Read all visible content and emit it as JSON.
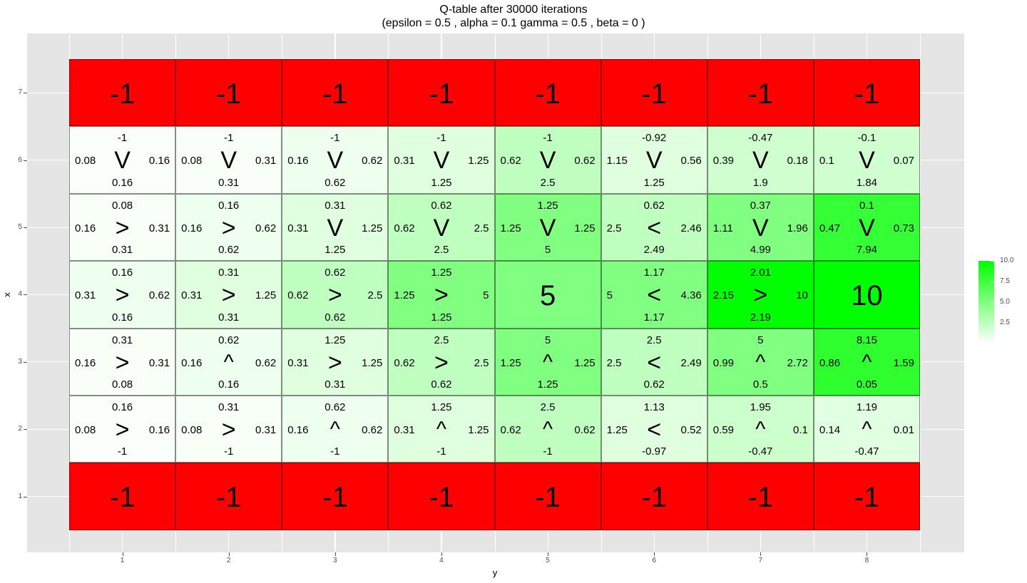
{
  "chart_data": {
    "type": "heatmap",
    "title": "Q-table after  30000  iterations",
    "subtitle": "(epsilon =  0.5 , alpha =  0.1 gamma =  0.5 , beta =  0 )",
    "xlabel": "y",
    "ylabel": "x",
    "x_ticks": [
      "1",
      "2",
      "3",
      "4",
      "5",
      "6",
      "7",
      "8"
    ],
    "y_ticks": [
      "1",
      "2",
      "3",
      "4",
      "5",
      "6",
      "7"
    ],
    "legend": {
      "position": "right",
      "range": [
        0,
        10
      ],
      "ticks": [
        "2.5",
        "5.0",
        "7.5",
        "10.0"
      ],
      "low_color": "#ffffff",
      "high_color": "#00ff00"
    },
    "terminal_color": "#ff0000",
    "cells": [
      {
        "x": 7,
        "y": 1,
        "type": "terminal",
        "value": "-1",
        "color_value": -1
      },
      {
        "x": 7,
        "y": 2,
        "type": "terminal",
        "value": "-1",
        "color_value": -1
      },
      {
        "x": 7,
        "y": 3,
        "type": "terminal",
        "value": "-1",
        "color_value": -1
      },
      {
        "x": 7,
        "y": 4,
        "type": "terminal",
        "value": "-1",
        "color_value": -1
      },
      {
        "x": 7,
        "y": 5,
        "type": "terminal",
        "value": "-1",
        "color_value": -1
      },
      {
        "x": 7,
        "y": 6,
        "type": "terminal",
        "value": "-1",
        "color_value": -1
      },
      {
        "x": 7,
        "y": 7,
        "type": "terminal",
        "value": "-1",
        "color_value": -1
      },
      {
        "x": 7,
        "y": 8,
        "type": "terminal",
        "value": "-1",
        "color_value": -1
      },
      {
        "x": 6,
        "y": 1,
        "type": "state",
        "top": "-1",
        "left": "0.08",
        "right": "0.16",
        "bottom": "0.16",
        "arrow": "V",
        "color_value": 0.16
      },
      {
        "x": 6,
        "y": 2,
        "type": "state",
        "top": "-1",
        "left": "0.08",
        "right": "0.31",
        "bottom": "0.31",
        "arrow": "V",
        "color_value": 0.31
      },
      {
        "x": 6,
        "y": 3,
        "type": "state",
        "top": "-1",
        "left": "0.16",
        "right": "0.62",
        "bottom": "0.62",
        "arrow": "V",
        "color_value": 0.62
      },
      {
        "x": 6,
        "y": 4,
        "type": "state",
        "top": "-1",
        "left": "0.31",
        "right": "1.25",
        "bottom": "1.25",
        "arrow": "V",
        "color_value": 1.25
      },
      {
        "x": 6,
        "y": 5,
        "type": "state",
        "top": "-1",
        "left": "0.62",
        "right": "0.62",
        "bottom": "2.5",
        "arrow": "V",
        "color_value": 2.5
      },
      {
        "x": 6,
        "y": 6,
        "type": "state",
        "top": "-0.92",
        "left": "1.15",
        "right": "0.56",
        "bottom": "1.25",
        "arrow": "V",
        "color_value": 1.25
      },
      {
        "x": 6,
        "y": 7,
        "type": "state",
        "top": "-0.47",
        "left": "0.39",
        "right": "0.18",
        "bottom": "1.9",
        "arrow": "V",
        "color_value": 1.9
      },
      {
        "x": 6,
        "y": 8,
        "type": "state",
        "top": "-0.1",
        "left": "0.1",
        "right": "0.07",
        "bottom": "1.84",
        "arrow": "V",
        "color_value": 1.84
      },
      {
        "x": 5,
        "y": 1,
        "type": "state",
        "top": "0.08",
        "left": "0.16",
        "right": "0.31",
        "bottom": "0.31",
        "arrow": ">",
        "color_value": 0.31
      },
      {
        "x": 5,
        "y": 2,
        "type": "state",
        "top": "0.16",
        "left": "0.16",
        "right": "0.62",
        "bottom": "0.62",
        "arrow": ">",
        "color_value": 0.62
      },
      {
        "x": 5,
        "y": 3,
        "type": "state",
        "top": "0.31",
        "left": "0.31",
        "right": "1.25",
        "bottom": "1.25",
        "arrow": "V",
        "color_value": 1.25
      },
      {
        "x": 5,
        "y": 4,
        "type": "state",
        "top": "0.62",
        "left": "0.62",
        "right": "2.5",
        "bottom": "2.5",
        "arrow": "V",
        "color_value": 2.5
      },
      {
        "x": 5,
        "y": 5,
        "type": "state",
        "top": "1.25",
        "left": "1.25",
        "right": "1.25",
        "bottom": "5",
        "arrow": "V",
        "color_value": 5
      },
      {
        "x": 5,
        "y": 6,
        "type": "state",
        "top": "0.62",
        "left": "2.5",
        "right": "2.46",
        "bottom": "2.49",
        "arrow": "<",
        "color_value": 2.5
      },
      {
        "x": 5,
        "y": 7,
        "type": "state",
        "top": "0.37",
        "left": "1.11",
        "right": "1.96",
        "bottom": "4.99",
        "arrow": "V",
        "color_value": 4.99
      },
      {
        "x": 5,
        "y": 8,
        "type": "state",
        "top": "0.1",
        "left": "0.47",
        "right": "0.73",
        "bottom": "7.94",
        "arrow": "V",
        "color_value": 7.94
      },
      {
        "x": 4,
        "y": 1,
        "type": "state",
        "top": "0.16",
        "left": "0.31",
        "right": "0.62",
        "bottom": "0.16",
        "arrow": ">",
        "color_value": 0.62
      },
      {
        "x": 4,
        "y": 2,
        "type": "state",
        "top": "0.31",
        "left": "0.31",
        "right": "1.25",
        "bottom": "0.31",
        "arrow": ">",
        "color_value": 1.25
      },
      {
        "x": 4,
        "y": 3,
        "type": "state",
        "top": "0.62",
        "left": "0.62",
        "right": "2.5",
        "bottom": "0.62",
        "arrow": ">",
        "color_value": 2.5
      },
      {
        "x": 4,
        "y": 4,
        "type": "state",
        "top": "1.25",
        "left": "1.25",
        "right": "5",
        "bottom": "1.25",
        "arrow": ">",
        "color_value": 5
      },
      {
        "x": 4,
        "y": 5,
        "type": "goal",
        "value": "5",
        "color_value": 5
      },
      {
        "x": 4,
        "y": 6,
        "type": "state",
        "top": "1.17",
        "left": "5",
        "right": "4.36",
        "bottom": "1.17",
        "arrow": "<",
        "color_value": 5
      },
      {
        "x": 4,
        "y": 7,
        "type": "state",
        "top": "2.01",
        "left": "2.15",
        "right": "10",
        "bottom": "2.19",
        "arrow": ">",
        "color_value": 10
      },
      {
        "x": 4,
        "y": 8,
        "type": "goal",
        "value": "10",
        "color_value": 10
      },
      {
        "x": 3,
        "y": 1,
        "type": "state",
        "top": "0.31",
        "left": "0.16",
        "right": "0.31",
        "bottom": "0.08",
        "arrow": ">",
        "color_value": 0.31
      },
      {
        "x": 3,
        "y": 2,
        "type": "state",
        "top": "0.62",
        "left": "0.16",
        "right": "0.62",
        "bottom": "0.16",
        "arrow": "^",
        "color_value": 0.62
      },
      {
        "x": 3,
        "y": 3,
        "type": "state",
        "top": "1.25",
        "left": "0.31",
        "right": "1.25",
        "bottom": "0.31",
        "arrow": ">",
        "color_value": 1.25
      },
      {
        "x": 3,
        "y": 4,
        "type": "state",
        "top": "2.5",
        "left": "0.62",
        "right": "2.5",
        "bottom": "0.62",
        "arrow": ">",
        "color_value": 2.5
      },
      {
        "x": 3,
        "y": 5,
        "type": "state",
        "top": "5",
        "left": "1.25",
        "right": "1.25",
        "bottom": "1.25",
        "arrow": "^",
        "color_value": 5
      },
      {
        "x": 3,
        "y": 6,
        "type": "state",
        "top": "2.5",
        "left": "2.5",
        "right": "2.49",
        "bottom": "0.62",
        "arrow": "<",
        "color_value": 2.5
      },
      {
        "x": 3,
        "y": 7,
        "type": "state",
        "top": "5",
        "left": "0.99",
        "right": "2.72",
        "bottom": "0.5",
        "arrow": "^",
        "color_value": 5
      },
      {
        "x": 3,
        "y": 8,
        "type": "state",
        "top": "8.15",
        "left": "0.86",
        "right": "1.59",
        "bottom": "0.05",
        "arrow": "^",
        "color_value": 8.15
      },
      {
        "x": 2,
        "y": 1,
        "type": "state",
        "top": "0.16",
        "left": "0.08",
        "right": "0.16",
        "bottom": "-1",
        "arrow": ">",
        "color_value": 0.16
      },
      {
        "x": 2,
        "y": 2,
        "type": "state",
        "top": "0.31",
        "left": "0.08",
        "right": "0.31",
        "bottom": "-1",
        "arrow": ">",
        "color_value": 0.31
      },
      {
        "x": 2,
        "y": 3,
        "type": "state",
        "top": "0.62",
        "left": "0.16",
        "right": "0.62",
        "bottom": "-1",
        "arrow": "^",
        "color_value": 0.62
      },
      {
        "x": 2,
        "y": 4,
        "type": "state",
        "top": "1.25",
        "left": "0.31",
        "right": "1.25",
        "bottom": "-1",
        "arrow": "^",
        "color_value": 1.25
      },
      {
        "x": 2,
        "y": 5,
        "type": "state",
        "top": "2.5",
        "left": "0.62",
        "right": "0.62",
        "bottom": "-1",
        "arrow": "^",
        "color_value": 2.5
      },
      {
        "x": 2,
        "y": 6,
        "type": "state",
        "top": "1.13",
        "left": "1.25",
        "right": "0.52",
        "bottom": "-0.97",
        "arrow": "<",
        "color_value": 1.25
      },
      {
        "x": 2,
        "y": 7,
        "type": "state",
        "top": "1.95",
        "left": "0.59",
        "right": "0.1",
        "bottom": "-0.47",
        "arrow": "^",
        "color_value": 1.95
      },
      {
        "x": 2,
        "y": 8,
        "type": "state",
        "top": "1.19",
        "left": "0.14",
        "right": "0.01",
        "bottom": "-0.47",
        "arrow": "^",
        "color_value": 1.19
      },
      {
        "x": 1,
        "y": 1,
        "type": "terminal",
        "value": "-1",
        "color_value": -1
      },
      {
        "x": 1,
        "y": 2,
        "type": "terminal",
        "value": "-1",
        "color_value": -1
      },
      {
        "x": 1,
        "y": 3,
        "type": "terminal",
        "value": "-1",
        "color_value": -1
      },
      {
        "x": 1,
        "y": 4,
        "type": "terminal",
        "value": "-1",
        "color_value": -1
      },
      {
        "x": 1,
        "y": 5,
        "type": "terminal",
        "value": "-1",
        "color_value": -1
      },
      {
        "x": 1,
        "y": 6,
        "type": "terminal",
        "value": "-1",
        "color_value": -1
      },
      {
        "x": 1,
        "y": 7,
        "type": "terminal",
        "value": "-1",
        "color_value": -1
      },
      {
        "x": 1,
        "y": 8,
        "type": "terminal",
        "value": "-1",
        "color_value": -1
      }
    ]
  }
}
